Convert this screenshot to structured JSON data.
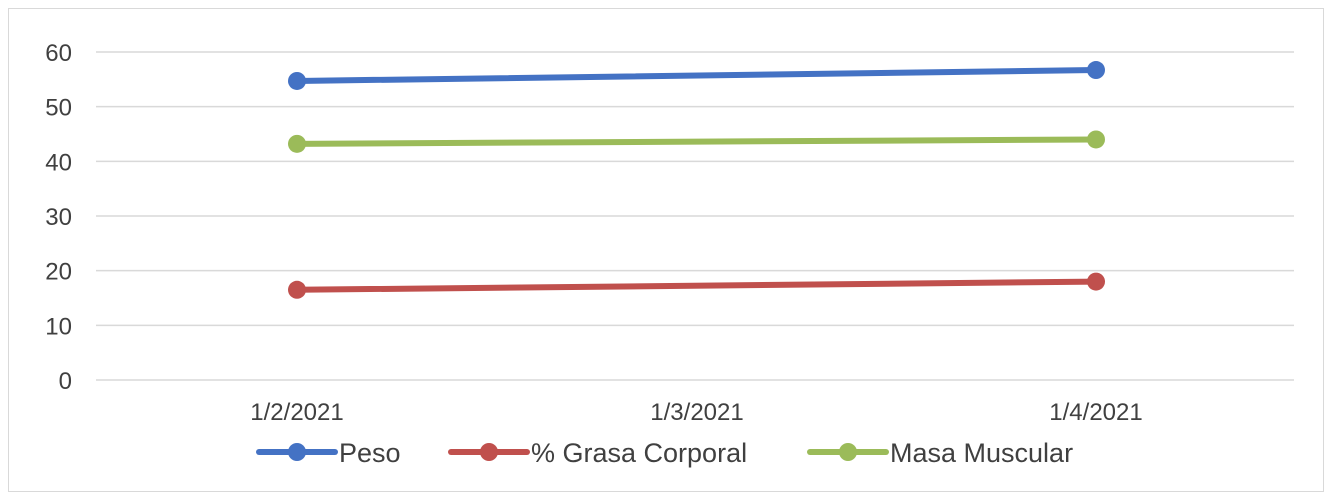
{
  "chart_data": {
    "type": "line",
    "title": "",
    "xlabel": "",
    "ylabel": "",
    "categories": [
      "1/2/2021",
      "1/3/2021",
      "1/4/2021"
    ],
    "ylim": [
      0,
      60
    ],
    "yticks": [
      0,
      10,
      20,
      30,
      40,
      50,
      60
    ],
    "grid": true,
    "legend_position": "bottom",
    "series": [
      {
        "name": "Peso",
        "color": "#4472C4",
        "points": [
          {
            "x": "1/2/2021",
            "y": 54.7
          },
          {
            "x": "1/4/2021",
            "y": 56.7
          }
        ]
      },
      {
        "name": "% Grasa Corporal",
        "color": "#C0504D",
        "points": [
          {
            "x": "1/2/2021",
            "y": 16.5
          },
          {
            "x": "1/4/2021",
            "y": 18.0
          }
        ]
      },
      {
        "name": "Masa Muscular",
        "color": "#9BBB59",
        "points": [
          {
            "x": "1/2/2021",
            "y": 43.2
          },
          {
            "x": "1/4/2021",
            "y": 44.0
          }
        ]
      }
    ]
  }
}
